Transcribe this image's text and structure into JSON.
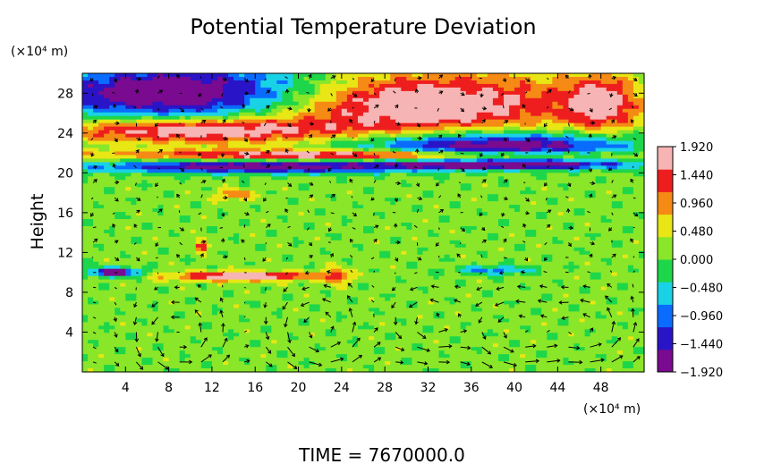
{
  "chart_data": {
    "type": "heatmap",
    "title": "Potential Temperature Deviation",
    "ylabel": "Height",
    "yunit": "(×10⁴ m)",
    "xunit": "(×10⁴ m)",
    "footer": "TIME  =  7670000.0",
    "xlim": [
      0,
      52
    ],
    "ylim": [
      0,
      30
    ],
    "x_ticks": [
      4,
      8,
      12,
      16,
      20,
      24,
      28,
      32,
      36,
      40,
      44,
      48
    ],
    "y_ticks": [
      4,
      8,
      12,
      16,
      20,
      24,
      28
    ],
    "colorbar": {
      "range": [
        -1.92,
        1.92
      ],
      "tick_values": [
        1.92,
        1.44,
        0.96,
        0.48,
        0.0,
        -0.48,
        -0.96,
        -1.44,
        -1.92
      ],
      "tick_labels": [
        "1.920",
        "1.440",
        "0.960",
        "0.480",
        "0.000",
        "−0.480",
        "−0.960",
        "−1.440",
        "−1.920"
      ],
      "colors": [
        "#7a0a8f",
        "#2a14c8",
        "#0a6cff",
        "#19d2e6",
        "#1ed64a",
        "#8ae628",
        "#e8e614",
        "#f58a14",
        "#ee1e1e",
        "#f7b4b4"
      ]
    },
    "fields": {
      "background": 0.15,
      "blobs": [
        {
          "x": 10,
          "y": 28.0,
          "rx": 16,
          "ry": 3.2,
          "v": -2.4
        },
        {
          "x": 30,
          "y": 27.0,
          "rx": 16,
          "ry": 3.4,
          "v": 2.2
        },
        {
          "x": 48,
          "y": 27.0,
          "rx": 3.5,
          "ry": 3.0,
          "v": 1.5
        },
        {
          "x": 10,
          "y": 24.3,
          "rx": 14,
          "ry": 1.4,
          "v": 2.0
        },
        {
          "x": 38,
          "y": 22.6,
          "rx": 14,
          "ry": 1.6,
          "v": -2.4
        },
        {
          "x": 26,
          "y": 21.8,
          "rx": 24,
          "ry": 0.6,
          "v": 2.0
        },
        {
          "x": 16,
          "y": 20.6,
          "rx": 16,
          "ry": 0.7,
          "v": -2.2
        },
        {
          "x": 40,
          "y": 20.8,
          "rx": 12,
          "ry": 0.5,
          "v": -1.8
        },
        {
          "x": 3,
          "y": 10.0,
          "rx": 2.5,
          "ry": 0.5,
          "v": -2.2
        },
        {
          "x": 15,
          "y": 9.6,
          "rx": 7,
          "ry": 0.5,
          "v": 2.0
        },
        {
          "x": 38,
          "y": 10.2,
          "rx": 4,
          "ry": 0.5,
          "v": -1.0
        },
        {
          "x": 11,
          "y": 12.6,
          "rx": 0.6,
          "ry": 0.7,
          "v": 1.6
        },
        {
          "x": 23.5,
          "y": 9.6,
          "rx": 1.2,
          "ry": 0.8,
          "v": 1.2
        },
        {
          "x": 14,
          "y": 17.8,
          "rx": 2.0,
          "ry": 0.6,
          "v": 0.9
        }
      ]
    },
    "vortices": [
      {
        "x": 9,
        "y": 3.2,
        "r": 4.2
      },
      {
        "x": 22,
        "y": 4.0,
        "r": 4.5
      },
      {
        "x": 32,
        "y": 5.0,
        "r": 3.5
      },
      {
        "x": 40,
        "y": 4.0,
        "r": 4.5
      },
      {
        "x": 47,
        "y": 4.0,
        "r": 4.0
      }
    ]
  }
}
